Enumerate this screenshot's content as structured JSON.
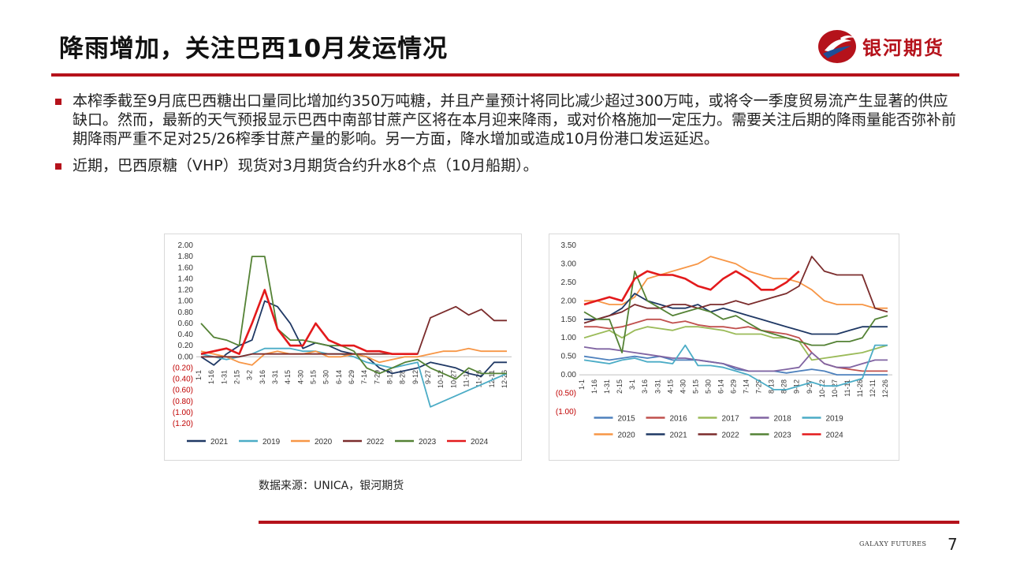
{
  "header": {
    "title": "降雨增加，关注巴西10月发运情况",
    "logo_text": "银河期货",
    "brand_color": "#b5121b"
  },
  "bullets": [
    "本榨季截至9月底巴西糖出口量同比增加约350万吨糖，并且产量预计将同比减少超过300万吨，或将令一季度贸易流产生显著的供应缺口。然而，最新的天气预报显示巴西中南部甘蔗产区将在本月迎来降雨，或对价格施加一定压力。需要关注后期的降雨量能否弥补前期降雨严重不足对25/26榨季甘蔗产量的影响。另一方面，降水增加或造成10月份港口发运延迟。",
    "近期，巴西原糖（VHP）现货对3月期货合约升水8个点（10月船期）。"
  ],
  "source": "数据来源：UNICA，银河期货",
  "footer": {
    "name": "GALAXY FUTURES",
    "page": "7"
  },
  "chart_data": [
    {
      "type": "line",
      "y_ticks": [
        "2.00",
        "1.80",
        "1.60",
        "1.40",
        "1.20",
        "1.00",
        "0.80",
        "0.60",
        "0.40",
        "0.20",
        "0.00",
        "(0.20)",
        "(0.40)",
        "(0.60)",
        "(0.80)",
        "(1.00)",
        "(1.20)"
      ],
      "ylim": [
        -1.2,
        2.0
      ],
      "x_ticks": [
        "1-1",
        "1-16",
        "1-31",
        "2-15",
        "3-2",
        "3-16",
        "3-31",
        "4-15",
        "4-30",
        "5-15",
        "5-30",
        "6-14",
        "6-29",
        "7-14",
        "7-29",
        "8-13",
        "8-28",
        "9-12",
        "9-27",
        "10-12",
        "10-27",
        "11-11",
        "11-26",
        "12-11",
        "12-26"
      ],
      "legend_position": "bottom",
      "series": [
        {
          "name": "2021",
          "color": "#1f3864",
          "values": [
            0.0,
            -0.15,
            0.05,
            0.2,
            0.3,
            1.0,
            0.9,
            0.6,
            0.15,
            0.25,
            0.2,
            0.1,
            0.05,
            0.0,
            -0.2,
            -0.3,
            -0.25,
            -0.2,
            -0.1,
            -0.15,
            -0.2,
            -0.3,
            -0.35,
            -0.1,
            -0.1
          ]
        },
        {
          "name": "2019",
          "color": "#4bacc6",
          "values": [
            0.05,
            0.0,
            -0.05,
            0.0,
            0.05,
            0.15,
            0.15,
            0.15,
            0.1,
            0.1,
            0.05,
            0.05,
            0.0,
            -0.1,
            -0.15,
            -0.2,
            -0.15,
            -0.1,
            -0.9,
            -0.8,
            -0.7,
            -0.6,
            -0.5,
            -0.4,
            -0.3
          ]
        },
        {
          "name": "2020",
          "color": "#f79646",
          "values": [
            0.1,
            0.05,
            0.0,
            -0.1,
            -0.15,
            0.05,
            0.1,
            0.05,
            0.05,
            0.1,
            0.0,
            0.0,
            0.05,
            0.0,
            -0.1,
            -0.05,
            0.0,
            0.0,
            0.05,
            0.1,
            0.1,
            0.15,
            0.1,
            0.1,
            0.1
          ]
        },
        {
          "name": "2022",
          "color": "#7b2c2c",
          "values": [
            0.0,
            0.0,
            0.0,
            0.0,
            0.05,
            0.05,
            0.05,
            0.05,
            0.05,
            0.05,
            0.05,
            0.05,
            0.05,
            0.05,
            0.05,
            0.05,
            0.05,
            0.05,
            0.7,
            0.8,
            0.9,
            0.75,
            0.85,
            0.65,
            0.65
          ]
        },
        {
          "name": "2023",
          "color": "#548235",
          "values": [
            0.6,
            0.35,
            0.3,
            0.2,
            1.8,
            1.8,
            0.5,
            0.3,
            0.3,
            0.25,
            0.2,
            0.2,
            0.1,
            -0.2,
            -0.3,
            -0.2,
            -0.1,
            -0.05,
            -0.2,
            -0.3,
            -0.4,
            -0.2,
            -0.3,
            -0.3,
            -0.3
          ]
        },
        {
          "name": "2024",
          "color": "#e31a1c",
          "values": [
            0.05,
            0.1,
            0.15,
            0.05,
            0.6,
            1.2,
            0.5,
            0.2,
            0.2,
            0.6,
            0.3,
            0.2,
            0.2,
            0.1,
            0.1,
            0.05,
            0.05,
            0.05
          ]
        }
      ]
    },
    {
      "type": "line",
      "y_ticks": [
        "3.50",
        "3.00",
        "2.50",
        "2.00",
        "1.50",
        "1.00",
        "0.50",
        "0.00",
        "(0.50)",
        "(1.00)"
      ],
      "ylim": [
        -1.0,
        3.5
      ],
      "x_ticks": [
        "1-1",
        "1-16",
        "1-31",
        "2-15",
        "3-1",
        "3-16",
        "3-31",
        "4-15",
        "4-30",
        "5-15",
        "5-30",
        "6-14",
        "6-29",
        "7-14",
        "7-29",
        "8-13",
        "8-28",
        "9-12",
        "9-27",
        "10-12",
        "10-27",
        "11-11",
        "11-26",
        "12-11",
        "12-26"
      ],
      "legend_position": "bottom",
      "series": [
        {
          "name": "2015",
          "color": "#4e81bd",
          "values": [
            0.5,
            0.45,
            0.4,
            0.45,
            0.5,
            0.45,
            0.5,
            0.4,
            0.4,
            0.4,
            0.35,
            0.3,
            0.15,
            0.1,
            0.1,
            0.1,
            0.05,
            0.1,
            0.15,
            0.1,
            0.0,
            0.0,
            0.0,
            0.0,
            0.0
          ]
        },
        {
          "name": "2016",
          "color": "#c0504d",
          "values": [
            1.3,
            1.3,
            1.25,
            1.3,
            1.4,
            1.5,
            1.5,
            1.4,
            1.45,
            1.35,
            1.3,
            1.3,
            1.25,
            1.3,
            1.2,
            1.15,
            1.1,
            1.0,
            0.6,
            0.3,
            0.2,
            0.15,
            0.1,
            0.1,
            0.1
          ]
        },
        {
          "name": "2017",
          "color": "#9bbb59",
          "values": [
            1.0,
            1.1,
            1.2,
            1.0,
            1.2,
            1.3,
            1.25,
            1.2,
            1.3,
            1.3,
            1.25,
            1.2,
            1.1,
            1.1,
            1.1,
            1.0,
            1.0,
            0.9,
            0.4,
            0.45,
            0.5,
            0.55,
            0.6,
            0.7,
            0.8
          ]
        },
        {
          "name": "2018",
          "color": "#8064a2",
          "values": [
            0.75,
            0.7,
            0.7,
            0.65,
            0.6,
            0.55,
            0.5,
            0.45,
            0.45,
            0.4,
            0.35,
            0.3,
            0.2,
            0.1,
            0.1,
            0.1,
            0.15,
            0.2,
            0.6,
            0.3,
            0.2,
            0.2,
            0.3,
            0.4,
            0.4
          ]
        },
        {
          "name": "2019",
          "color": "#4bacc6",
          "values": [
            0.4,
            0.35,
            0.3,
            0.4,
            0.45,
            0.35,
            0.35,
            0.3,
            0.8,
            0.25,
            0.25,
            0.2,
            0.1,
            0.0,
            -0.2,
            -0.4,
            -0.4,
            -0.3,
            -0.2,
            -0.3,
            -0.3,
            -0.2,
            -0.1,
            0.8,
            0.8
          ]
        },
        {
          "name": "2020",
          "color": "#f79646",
          "values": [
            2.0,
            2.0,
            1.9,
            1.9,
            2.1,
            2.6,
            2.7,
            2.8,
            2.9,
            3.0,
            3.2,
            3.1,
            3.0,
            2.8,
            2.7,
            2.6,
            2.6,
            2.5,
            2.3,
            2.0,
            1.9,
            1.9,
            1.9,
            1.8,
            1.8
          ]
        },
        {
          "name": "2021",
          "color": "#1f3864",
          "values": [
            1.5,
            1.5,
            1.6,
            1.8,
            2.2,
            2.0,
            1.9,
            1.8,
            1.8,
            1.9,
            1.7,
            1.8,
            1.7,
            1.6,
            1.5,
            1.4,
            1.3,
            1.2,
            1.1,
            1.1,
            1.1,
            1.2,
            1.3,
            1.3,
            1.3
          ]
        },
        {
          "name": "2022",
          "color": "#7b2c2c",
          "values": [
            1.4,
            1.5,
            1.6,
            1.7,
            1.9,
            1.8,
            1.8,
            1.9,
            1.9,
            1.8,
            1.9,
            1.9,
            2.0,
            1.9,
            2.0,
            2.1,
            2.2,
            2.4,
            3.2,
            2.8,
            2.7,
            2.7,
            2.7,
            1.8,
            1.7
          ]
        },
        {
          "name": "2023",
          "color": "#548235",
          "values": [
            1.7,
            1.5,
            1.5,
            0.6,
            2.8,
            2.0,
            1.8,
            1.6,
            1.7,
            1.8,
            1.7,
            1.5,
            1.6,
            1.4,
            1.2,
            1.1,
            1.0,
            0.9,
            0.8,
            0.8,
            0.9,
            0.9,
            1.0,
            1.5,
            1.6
          ]
        },
        {
          "name": "2024",
          "color": "#e31a1c",
          "values": [
            1.9,
            2.0,
            2.1,
            2.0,
            2.6,
            2.8,
            2.7,
            2.7,
            2.6,
            2.4,
            2.3,
            2.6,
            2.8,
            2.6,
            2.3,
            2.3,
            2.5,
            2.8
          ]
        }
      ]
    }
  ]
}
